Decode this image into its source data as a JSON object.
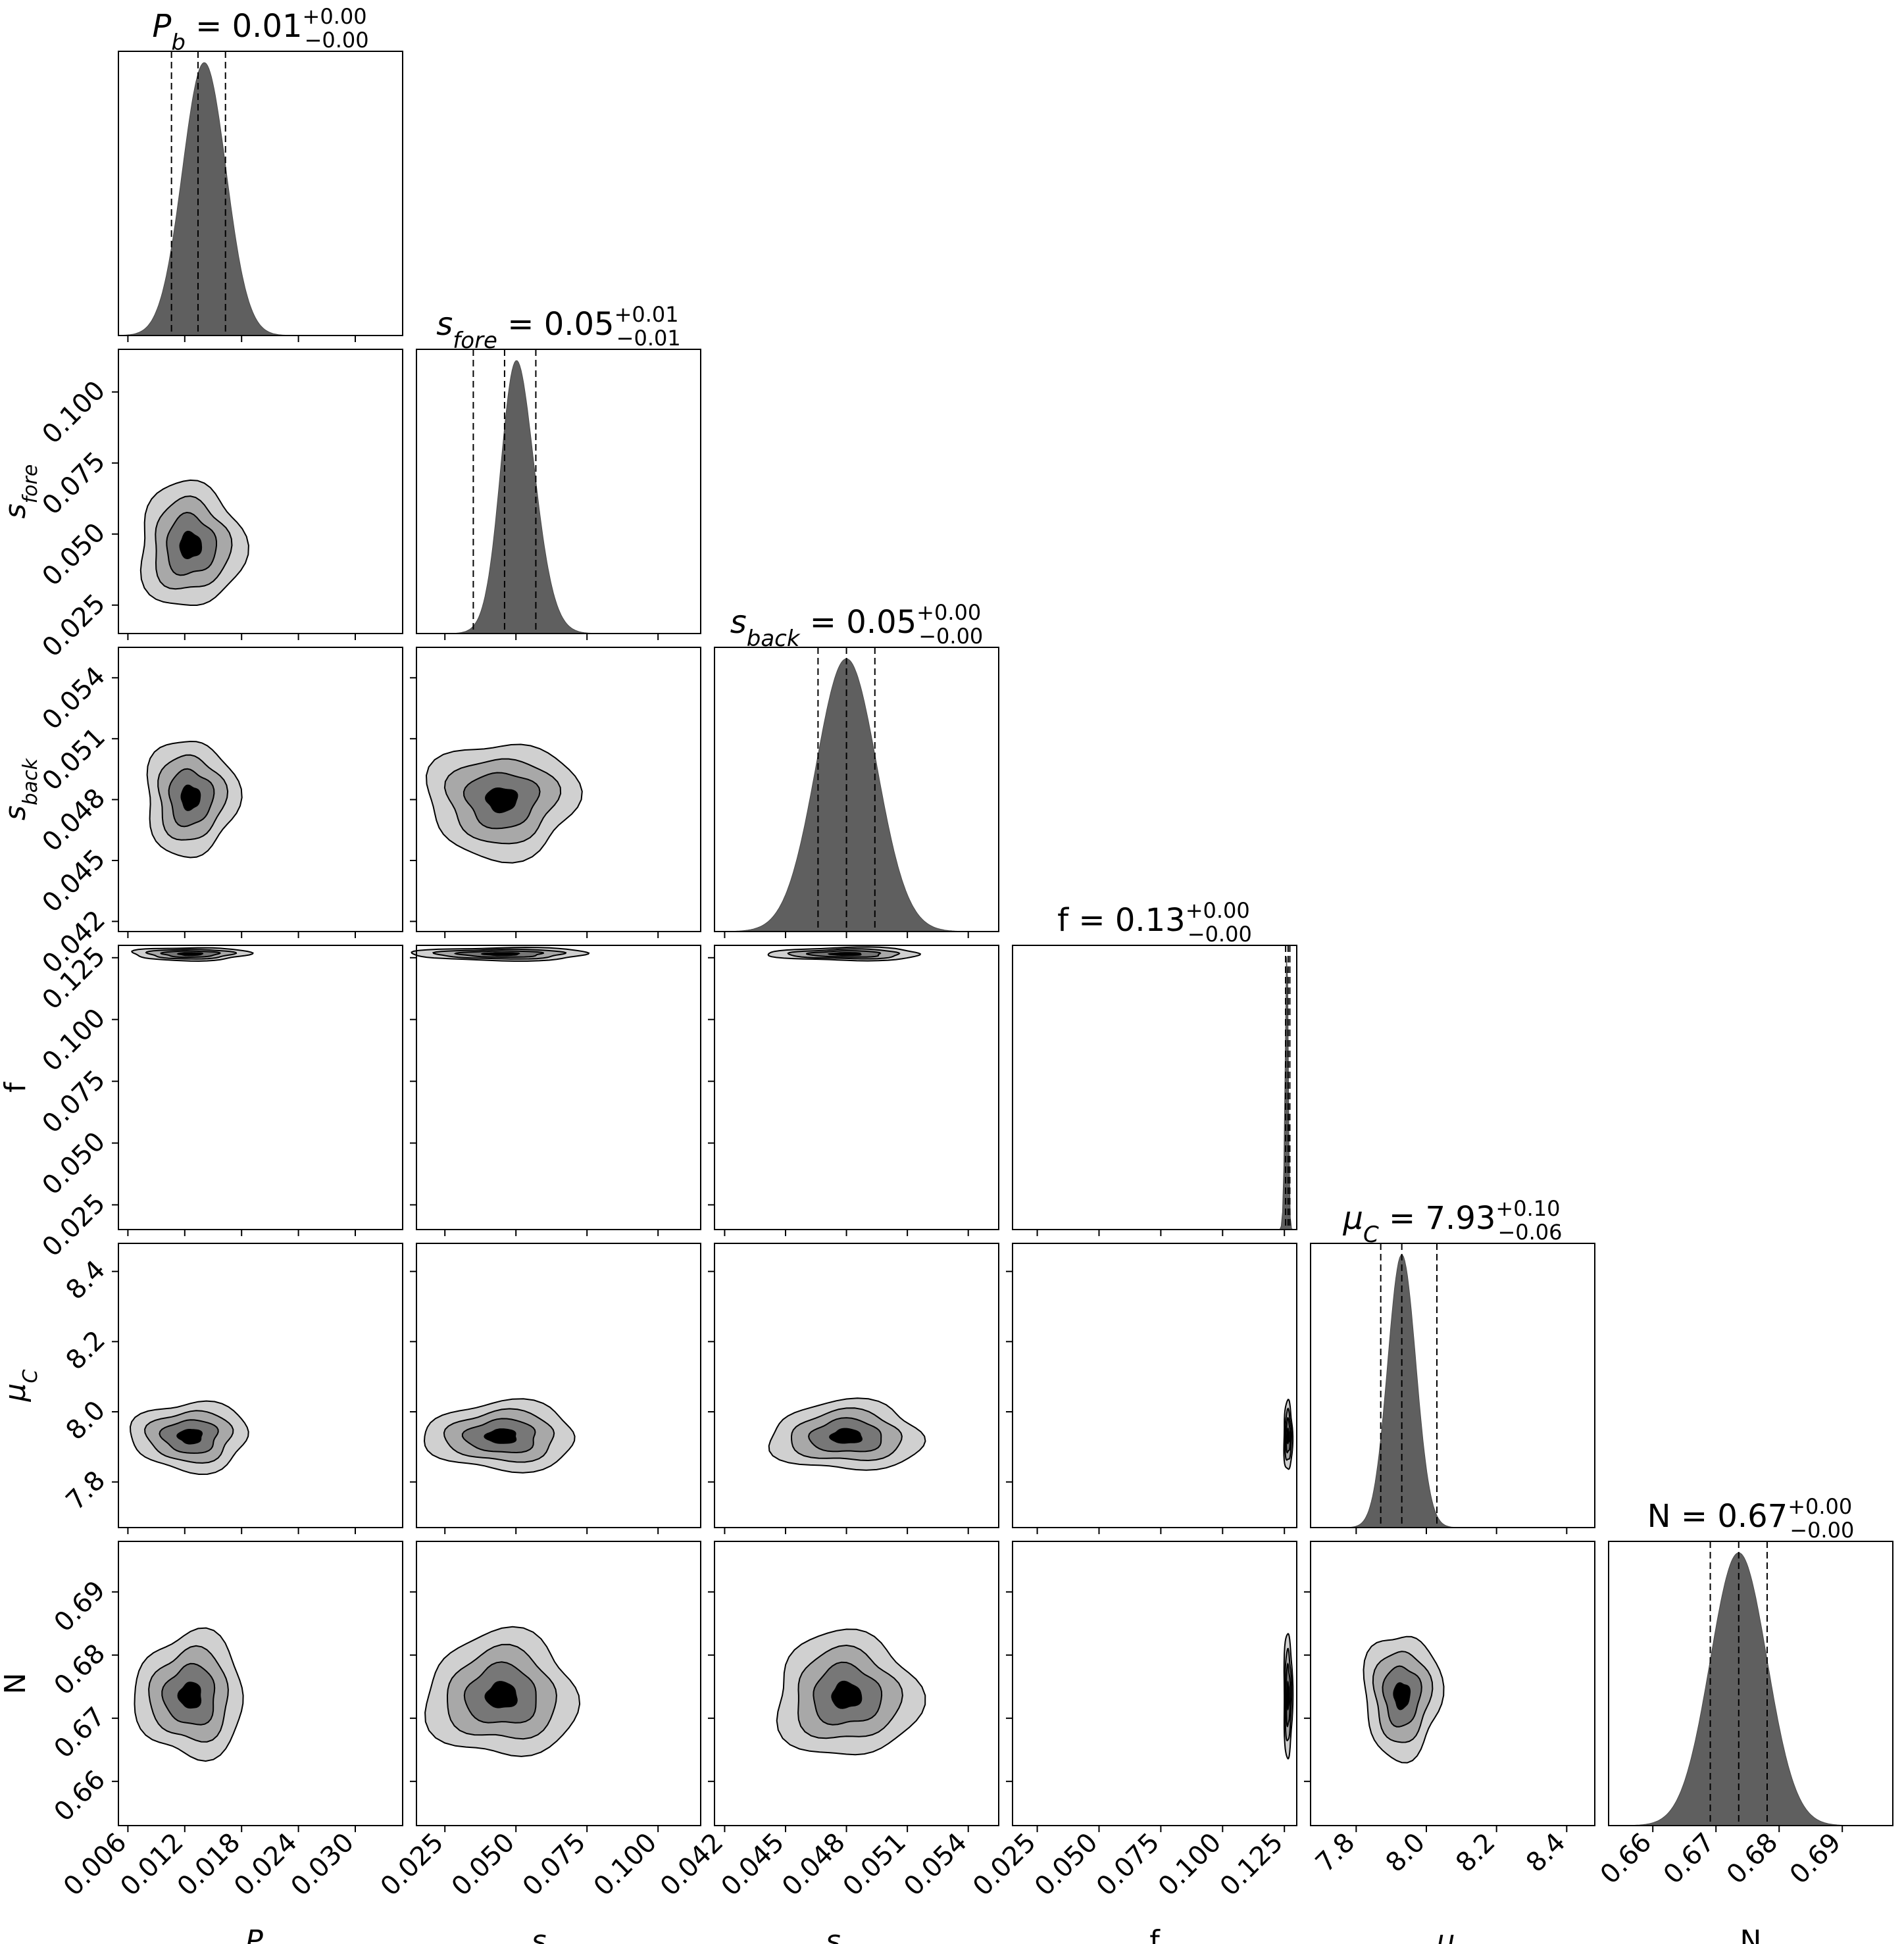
{
  "chart_data": {
    "type": "corner",
    "parameters": [
      {
        "id": "Pb",
        "label_main": "P",
        "label_sub": "b",
        "label_italic": true,
        "range": [
          0.005,
          0.035
        ],
        "ticks": [
          0.006,
          0.012,
          0.018,
          0.024,
          0.03
        ],
        "tick_labels": [
          "0.006",
          "0.012",
          "0.018",
          "0.024",
          "0.030"
        ],
        "title_value": "0.01",
        "title_plus": "+0.00",
        "title_minus": "−0.00",
        "quantiles": [
          0.0106,
          0.0134,
          0.0163
        ],
        "marginal": {
          "mean": 0.0134,
          "sd": 0.0024,
          "skew": 0.6
        }
      },
      {
        "id": "sfore",
        "label_main": "s",
        "label_sub": "fore",
        "label_italic": true,
        "range": [
          0.015,
          0.115
        ],
        "ticks": [
          0.025,
          0.05,
          0.075,
          0.1
        ],
        "tick_labels": [
          "0.025",
          "0.050",
          "0.075",
          "0.100"
        ],
        "title_value": "0.05",
        "title_plus": "+0.01",
        "title_minus": "−0.01",
        "quantiles": [
          0.035,
          0.046,
          0.057
        ],
        "marginal": {
          "mean": 0.046,
          "sd": 0.008,
          "skew": 2.2
        }
      },
      {
        "id": "sback",
        "label_main": "s",
        "label_sub": "back",
        "label_italic": true,
        "range": [
          0.0415,
          0.0555
        ],
        "ticks": [
          0.042,
          0.045,
          0.048,
          0.051,
          0.054
        ],
        "tick_labels": [
          "0.042",
          "0.045",
          "0.048",
          "0.051",
          "0.054"
        ],
        "title_value": "0.05",
        "title_plus": "+0.00",
        "title_minus": "−0.00",
        "quantiles": [
          0.0466,
          0.048,
          0.0494
        ],
        "marginal": {
          "mean": 0.048,
          "sd": 0.0015,
          "skew": 0.0
        }
      },
      {
        "id": "f",
        "label_main": "f",
        "label_sub": "",
        "label_italic": false,
        "range": [
          0.015,
          0.13
        ],
        "ticks": [
          0.025,
          0.05,
          0.075,
          0.1,
          0.125
        ],
        "tick_labels": [
          "0.025",
          "0.050",
          "0.075",
          "0.100",
          "0.125"
        ],
        "title_value": "0.13",
        "title_plus": "+0.00",
        "title_minus": "−0.00",
        "quantiles": [
          0.1255,
          0.1265,
          0.1272
        ],
        "marginal": {
          "mean": 0.1265,
          "sd": 0.0009,
          "skew": -3.0
        }
      },
      {
        "id": "muC",
        "label_main": "μ",
        "label_sub": "C",
        "label_italic": true,
        "range": [
          7.67,
          8.48
        ],
        "ticks": [
          7.8,
          8.0,
          8.2,
          8.4
        ],
        "tick_labels": [
          "7.8",
          "8.0",
          "8.2",
          "8.4"
        ],
        "title_value": "7.93",
        "title_plus": "+0.10",
        "title_minus": "−0.06",
        "quantiles": [
          7.87,
          7.93,
          8.03
        ],
        "marginal": {
          "mean": 7.93,
          "sd": 0.04,
          "skew": 0.0
        }
      },
      {
        "id": "N",
        "label_main": "N",
        "label_sub": "",
        "label_italic": false,
        "range": [
          0.653,
          0.698
        ],
        "ticks": [
          0.66,
          0.67,
          0.68,
          0.69
        ],
        "tick_labels": [
          "0.66",
          "0.67",
          "0.68",
          "0.69"
        ],
        "title_value": "0.67",
        "title_plus": "+0.00",
        "title_minus": "−0.00",
        "quantiles": [
          0.6691,
          0.6736,
          0.6781
        ],
        "marginal": {
          "mean": 0.6736,
          "sd": 0.0045,
          "skew": 0.0
        }
      }
    ],
    "contour_levels": 4,
    "fill_colors": [
      "#d0d0d0",
      "#a8a8a8",
      "#777777",
      "#000000"
    ],
    "pair_centers": [
      {
        "row": 1,
        "col": 0,
        "cx": 0.0126,
        "cy": 0.046,
        "sx": 0.0025,
        "sy": 0.01
      },
      {
        "row": 2,
        "col": 0,
        "cx": 0.0126,
        "cy": 0.0481,
        "sx": 0.0022,
        "sy": 0.0013
      },
      {
        "row": 2,
        "col": 1,
        "cx": 0.045,
        "cy": 0.048,
        "sx": 0.012,
        "sy": 0.0013
      },
      {
        "row": 3,
        "col": 0,
        "cx": 0.0126,
        "cy": 0.1265,
        "sx": 0.0028,
        "sy": 0.0012
      },
      {
        "row": 3,
        "col": 1,
        "cx": 0.045,
        "cy": 0.1265,
        "sx": 0.014,
        "sy": 0.0012
      },
      {
        "row": 3,
        "col": 2,
        "cx": 0.048,
        "cy": 0.1265,
        "sx": 0.0017,
        "sy": 0.0012
      },
      {
        "row": 4,
        "col": 0,
        "cx": 0.0126,
        "cy": 7.93,
        "sx": 0.0028,
        "sy": 0.045
      },
      {
        "row": 4,
        "col": 1,
        "cx": 0.045,
        "cy": 7.93,
        "sx": 0.012,
        "sy": 0.045
      },
      {
        "row": 4,
        "col": 2,
        "cx": 0.048,
        "cy": 7.93,
        "sx": 0.0017,
        "sy": 0.045
      },
      {
        "row": 4,
        "col": 3,
        "cx": 0.1265,
        "cy": 7.93,
        "sx": 0.0008,
        "sy": 0.045
      },
      {
        "row": 5,
        "col": 0,
        "cx": 0.0126,
        "cy": 0.6736,
        "sx": 0.0026,
        "sy": 0.0045
      },
      {
        "row": 5,
        "col": 1,
        "cx": 0.045,
        "cy": 0.6736,
        "sx": 0.012,
        "sy": 0.0045
      },
      {
        "row": 5,
        "col": 2,
        "cx": 0.048,
        "cy": 0.6736,
        "sx": 0.0016,
        "sy": 0.0045
      },
      {
        "row": 5,
        "col": 3,
        "cx": 0.1265,
        "cy": 0.6736,
        "sx": 0.0008,
        "sy": 0.0045
      },
      {
        "row": 5,
        "col": 4,
        "cx": 7.93,
        "cy": 0.6736,
        "sx": 0.05,
        "sy": 0.0045
      }
    ],
    "grid": false
  }
}
